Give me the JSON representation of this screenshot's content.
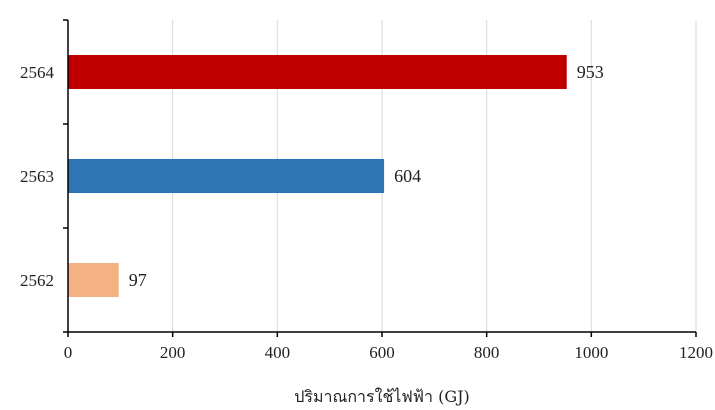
{
  "chart_data": {
    "type": "bar",
    "orientation": "horizontal",
    "categories": [
      "2564",
      "2563",
      "2562"
    ],
    "values": [
      953,
      604,
      97
    ],
    "bar_colors": [
      "#c00000",
      "#2e75b6",
      "#f4b183"
    ],
    "data_labels": [
      "953",
      "604",
      "97"
    ],
    "xlabel": "ปริมาณการใช้ไฟฟ้า (GJ)",
    "ylabel": "",
    "title": "",
    "xlim": [
      0,
      1200
    ],
    "xticks": [
      0,
      200,
      400,
      600,
      800,
      1000,
      1200
    ],
    "xtick_labels": [
      "0",
      "200",
      "400",
      "600",
      "800",
      "1000",
      "1200"
    ],
    "grid": "vertical",
    "gridline_color": "#d9d9d9",
    "axis_color": "#000000",
    "legend": "none"
  }
}
